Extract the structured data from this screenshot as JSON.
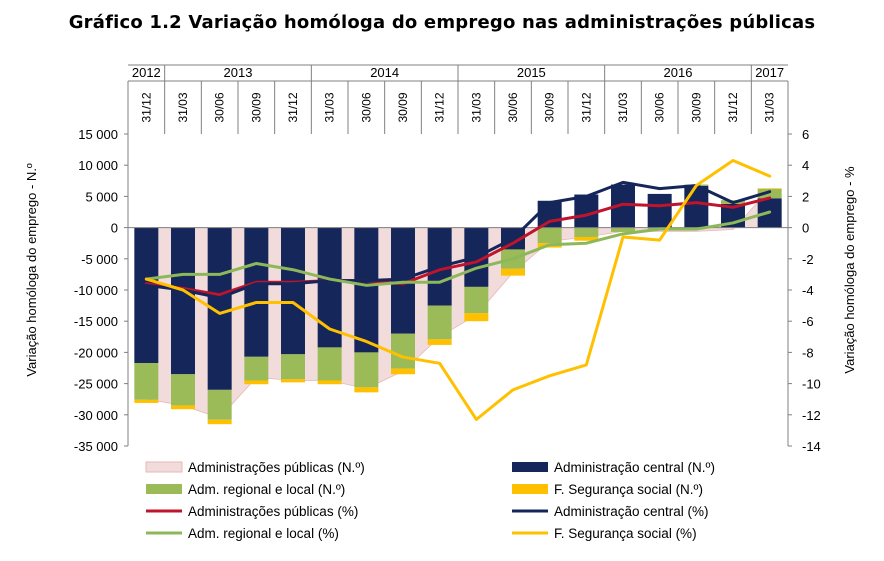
{
  "chart_data": {
    "type": "bar",
    "title": "Gráfico 1.2 Variação homóloga do emprego nas administrações públicas",
    "ylabel": "Variação homóloga do emprego - N.º",
    "y2label": "Variação homóloga do emprego - %",
    "ylim": [
      -35000,
      15000
    ],
    "y2lim": [
      -14,
      6
    ],
    "yticks": [
      "15 000",
      "10 000",
      "5 000",
      "0",
      "-5 000",
      "-10 000",
      "-15 000",
      "-20 000",
      "-25 000",
      "-30 000",
      "-35 000"
    ],
    "y2ticks": [
      "6",
      "4",
      "2",
      "0",
      "-2",
      "-4",
      "-6",
      "-8",
      "-10",
      "-12",
      "-14"
    ],
    "years": [
      {
        "label": "2012",
        "first": 0,
        "last": 0
      },
      {
        "label": "2013",
        "first": 1,
        "last": 4
      },
      {
        "label": "2014",
        "first": 5,
        "last": 8
      },
      {
        "label": "2015",
        "first": 9,
        "last": 12
      },
      {
        "label": "2016",
        "first": 13,
        "last": 16
      },
      {
        "label": "2017",
        "first": 17,
        "last": 17
      }
    ],
    "categories": [
      "31/12",
      "31/03",
      "30/06",
      "30/09",
      "31/12",
      "31/03",
      "30/06",
      "30/09",
      "31/12",
      "31/03",
      "30/06",
      "30/09",
      "31/12",
      "31/03",
      "30/06",
      "30/09",
      "31/12",
      "31/03"
    ],
    "series": [
      {
        "name": "Administrações públicas (N.º)",
        "kind": "area",
        "axis": "left",
        "color": "#f2dcdb",
        "values": [
          -27500,
          -28500,
          -30500,
          -24000,
          -24500,
          -24500,
          -25800,
          -23000,
          -17500,
          -14000,
          -7200,
          -2200,
          -1500,
          -600,
          -600,
          -600,
          -300,
          6200
        ]
      },
      {
        "name": "Administração central (N.º)",
        "kind": "bar",
        "axis": "left",
        "color": "#14265a",
        "values": [
          -21700,
          -23500,
          -26000,
          -20700,
          -20300,
          -19200,
          -20000,
          -17000,
          -12500,
          -9500,
          -3500,
          4300,
          5300,
          6900,
          5400,
          6700,
          3800,
          4700
        ]
      },
      {
        "name": "Adm. regional e local (N.º)",
        "kind": "bar",
        "axis": "left",
        "color": "#9bbb59",
        "values": [
          -5900,
          -5000,
          -4800,
          -3800,
          -4000,
          -5300,
          -5600,
          -5600,
          -5400,
          -4200,
          -3100,
          -2500,
          -1500,
          -700,
          -300,
          200,
          600,
          1500
        ]
      },
      {
        "name": "F. Segurança social  (N.º)",
        "kind": "bar",
        "axis": "left",
        "color": "#ffc000",
        "values": [
          -500,
          -600,
          -700,
          -600,
          -500,
          -600,
          -800,
          -900,
          -900,
          -1300,
          -1100,
          -700,
          -600,
          0,
          0,
          0,
          0,
          100
        ]
      },
      {
        "name": "Administrações públicas (%)",
        "kind": "line",
        "axis": "right",
        "color": "#c0142c",
        "values": [
          -3.6,
          -3.9,
          -4.3,
          -3.5,
          -3.5,
          -3.4,
          -3.4,
          -3.6,
          -2.7,
          -2.2,
          -1.0,
          0.4,
          0.8,
          1.5,
          1.4,
          1.6,
          1.3,
          1.9
        ]
      },
      {
        "name": "Administração central  (%)",
        "kind": "line",
        "axis": "right",
        "color": "#14265a",
        "values": [
          -3.7,
          -4.0,
          -4.5,
          -3.6,
          -3.6,
          -3.4,
          -3.4,
          -3.3,
          -2.5,
          -1.9,
          -0.7,
          1.6,
          2.0,
          2.9,
          2.5,
          2.7,
          1.6,
          2.3
        ]
      },
      {
        "name": "Adm. regional e local (%)",
        "kind": "line",
        "axis": "right",
        "color": "#8db85a",
        "values": [
          -3.3,
          -3.0,
          -3.0,
          -2.3,
          -2.7,
          -3.3,
          -3.7,
          -3.5,
          -3.5,
          -2.6,
          -2.0,
          -1.1,
          -1.0,
          -0.4,
          -0.1,
          -0.1,
          0.3,
          1.0
        ]
      },
      {
        "name": "F. Segurança social  (%)",
        "kind": "line",
        "axis": "right",
        "color": "#ffc000",
        "values": [
          -3.3,
          -4.0,
          -5.5,
          -4.8,
          -4.8,
          -6.5,
          -7.3,
          -8.3,
          -8.7,
          -12.3,
          -10.4,
          -9.5,
          -8.8,
          -0.6,
          -0.8,
          2.7,
          4.3,
          3.3
        ]
      }
    ]
  }
}
